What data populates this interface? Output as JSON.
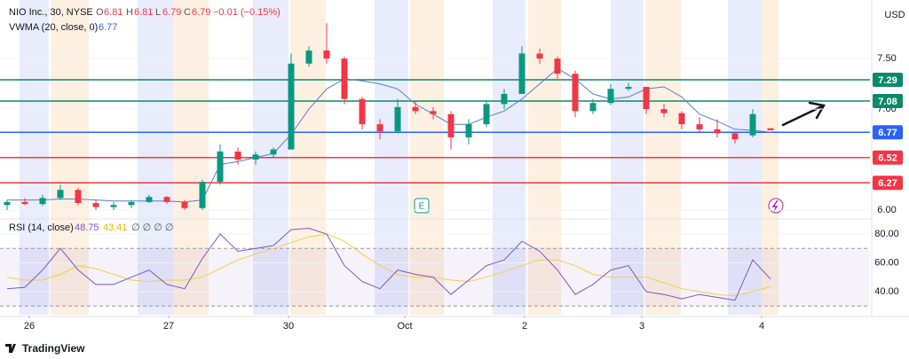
{
  "header": {
    "symbol": "NIO Inc., 30, NYSE",
    "o_label": "O",
    "open": "6.81",
    "h_label": "H",
    "high": "6.81",
    "l_label": "L",
    "low": "6.79",
    "c_label": "C",
    "close": "6.79",
    "change": "−0.01 (−0.15%)"
  },
  "currency": "USD",
  "brand": "TradingView",
  "chart_data": {
    "type": "candlestick",
    "up_color": "#089981",
    "down_color": "#f23645",
    "open": [
      6.05,
      6.08,
      6.06,
      6.12,
      6.2,
      6.07,
      6.03,
      6.05,
      6.08,
      6.13,
      6.08,
      6.02,
      6.28,
      6.58,
      6.5,
      6.55,
      6.6,
      7.45,
      7.58,
      7.5,
      7.1,
      6.85,
      6.78,
      7.02,
      6.98,
      6.95,
      6.72,
      6.85,
      7.05,
      7.15,
      7.55,
      7.5,
      7.35,
      6.98,
      7.06,
      7.2,
      7.22,
      7.0,
      6.96,
      6.85,
      6.8,
      6.76,
      6.74,
      6.81
    ],
    "high": [
      6.1,
      6.12,
      6.15,
      6.25,
      6.22,
      6.1,
      6.08,
      6.1,
      6.15,
      6.14,
      6.1,
      6.3,
      6.65,
      6.62,
      6.58,
      6.62,
      7.55,
      7.62,
      7.85,
      7.52,
      7.12,
      6.9,
      7.1,
      7.08,
      7.02,
      6.98,
      6.9,
      7.08,
      7.2,
      7.62,
      7.6,
      7.52,
      7.38,
      7.1,
      7.25,
      7.26,
      7.22,
      7.05,
      6.98,
      6.92,
      6.9,
      6.78,
      7.0,
      6.81
    ],
    "low": [
      6.0,
      6.05,
      6.04,
      6.1,
      6.05,
      6.0,
      6.0,
      6.02,
      6.07,
      6.06,
      6.0,
      6.0,
      6.25,
      6.45,
      6.45,
      6.52,
      6.6,
      7.42,
      7.45,
      7.05,
      6.8,
      6.7,
      6.76,
      6.95,
      6.9,
      6.6,
      6.65,
      6.82,
      7.0,
      7.15,
      7.45,
      7.3,
      6.92,
      6.95,
      7.04,
      7.18,
      6.95,
      6.92,
      6.8,
      6.76,
      6.72,
      6.66,
      6.72,
      6.79
    ],
    "close": [
      6.08,
      6.06,
      6.12,
      6.2,
      6.07,
      6.03,
      6.05,
      6.08,
      6.13,
      6.08,
      6.02,
      6.28,
      6.58,
      6.5,
      6.55,
      6.6,
      7.45,
      7.58,
      7.5,
      7.1,
      6.85,
      6.78,
      7.02,
      6.98,
      6.95,
      6.72,
      6.85,
      7.05,
      7.15,
      7.55,
      7.5,
      7.35,
      6.98,
      7.06,
      7.2,
      7.22,
      7.0,
      6.96,
      6.85,
      6.8,
      6.76,
      6.7,
      6.95,
      6.79
    ],
    "ylim": [
      5.93,
      8.08
    ],
    "yticks": [
      {
        "value": 6.0,
        "label": "6.00"
      },
      {
        "value": 7.0,
        "label": "7.00"
      },
      {
        "value": 7.5,
        "label": "7.50"
      }
    ],
    "xlim": [
      -0.4,
      48.6
    ],
    "xticks": [
      {
        "value": 1.25,
        "label": "26"
      },
      {
        "value": 9.1,
        "label": "27"
      },
      {
        "value": 15.85,
        "label": "30"
      },
      {
        "value": 22.4,
        "label": "Oct"
      },
      {
        "value": 29.15,
        "label": "2"
      },
      {
        "value": 35.75,
        "label": "3"
      },
      {
        "value": 42.5,
        "label": "4"
      }
    ],
    "vwma": {
      "name": "VWMA (20, close, 0)",
      "color": "#5b7bd5",
      "values": [
        6.1,
        6.1,
        6.1,
        6.11,
        6.11,
        6.1,
        6.09,
        6.09,
        6.09,
        6.09,
        6.08,
        6.1,
        6.45,
        6.48,
        6.52,
        6.56,
        6.75,
        7.0,
        7.2,
        7.3,
        7.28,
        7.25,
        7.2,
        7.05,
        6.95,
        6.85,
        6.85,
        6.92,
        6.98,
        7.1,
        7.25,
        7.4,
        7.3,
        7.15,
        7.1,
        7.12,
        7.2,
        7.22,
        7.12,
        6.95,
        6.88,
        6.8,
        6.79,
        6.77
      ]
    },
    "levels": [
      {
        "value": 7.29,
        "color": "#0b8a6a"
      },
      {
        "value": 7.08,
        "color": "#0b8a6a"
      },
      {
        "value": 6.77,
        "color": "#2962ff"
      },
      {
        "value": 6.52,
        "color": "#f23645"
      },
      {
        "value": 6.27,
        "color": "#f23645"
      }
    ],
    "earnings_marker": "E",
    "rsi": {
      "name": "RSI (14, close)",
      "color": "#7e57c2",
      "ma_color": "#f2cf4a",
      "extra": "∅ ∅ ∅ ∅",
      "values": [
        42,
        43,
        55,
        70,
        55,
        45,
        45,
        50,
        55,
        45,
        42,
        63,
        80,
        68,
        70,
        72,
        83,
        84,
        80,
        58,
        47,
        42,
        55,
        52,
        50,
        38,
        48,
        58,
        62,
        75,
        68,
        55,
        38,
        45,
        55,
        58,
        40,
        38,
        35,
        38,
        36,
        34,
        62,
        48.75
      ],
      "ma_values": [
        50,
        48,
        48,
        52,
        58,
        56,
        52,
        48,
        47,
        48,
        48,
        50,
        56,
        62,
        66,
        70,
        74,
        78,
        80,
        75,
        66,
        58,
        52,
        50,
        50,
        48,
        47,
        50,
        54,
        58,
        62,
        62,
        58,
        52,
        50,
        50,
        50,
        46,
        42,
        40,
        38,
        37,
        40,
        43.41
      ],
      "ylim": [
        24,
        88.6
      ],
      "yticks": [
        {
          "value": 40,
          "label": "40.00"
        },
        {
          "value": 60,
          "label": "60.00"
        },
        {
          "value": 80,
          "label": "80.00"
        }
      ],
      "bands": [
        70,
        30
      ]
    }
  }
}
